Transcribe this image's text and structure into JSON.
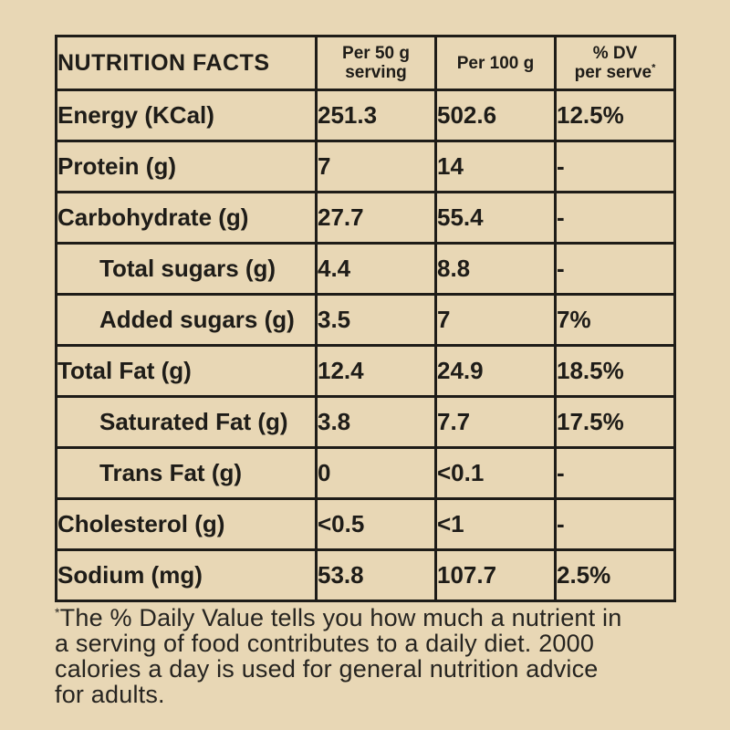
{
  "page": {
    "background_color": "#e8d7b5",
    "text_color": "#1e1c18",
    "border_color": "#1e1c18"
  },
  "table": {
    "title": "NUTRITION FACTS",
    "columns": [
      {
        "line1": "Per 50 g",
        "line2": "serving",
        "sup": ""
      },
      {
        "line1": "Per 100 g",
        "line2": "",
        "sup": ""
      },
      {
        "line1": "% DV",
        "line2": "per serve",
        "sup": "*"
      }
    ],
    "rows": [
      {
        "label": "Energy (KCal)",
        "indent": false,
        "per50": "251.3",
        "per100": "502.6",
        "dv": "12.5%"
      },
      {
        "label": "Protein (g)",
        "indent": false,
        "per50": "7",
        "per100": "14",
        "dv": "-"
      },
      {
        "label": "Carbohydrate (g)",
        "indent": false,
        "per50": "27.7",
        "per100": "55.4",
        "dv": "-"
      },
      {
        "label": "Total sugars (g)",
        "indent": true,
        "per50": "4.4",
        "per100": "8.8",
        "dv": "-"
      },
      {
        "label": "Added sugars (g)",
        "indent": true,
        "per50": "3.5",
        "per100": "7",
        "dv": "7%"
      },
      {
        "label": "Total Fat (g)",
        "indent": false,
        "per50": "12.4",
        "per100": "24.9",
        "dv": "18.5%"
      },
      {
        "label": "Saturated Fat (g)",
        "indent": true,
        "per50": "3.8",
        "per100": "7.7",
        "dv": "17.5%"
      },
      {
        "label": "Trans Fat (g)",
        "indent": true,
        "per50": "0",
        "per100": "<0.1",
        "dv": "-"
      },
      {
        "label": "Cholesterol (g)",
        "indent": false,
        "per50": "<0.5",
        "per100": "<1",
        "dv": "-"
      },
      {
        "label": "Sodium (mg)",
        "indent": false,
        "per50": "53.8",
        "per100": "107.7",
        "dv": "2.5%"
      }
    ]
  },
  "footnote": {
    "sup": "*",
    "lines": [
      "The % Daily Value tells you how much a nutrient in",
      "a serving of food contributes to a daily diet. 2000",
      "calories a day is used for general nutrition advice",
      "for adults."
    ],
    "full_text": "*The % Daily Value tells you how much a nutrient in a serving of food contributes to a daily diet. 2000 calories a day is used for general nutrition advice for adults."
  }
}
